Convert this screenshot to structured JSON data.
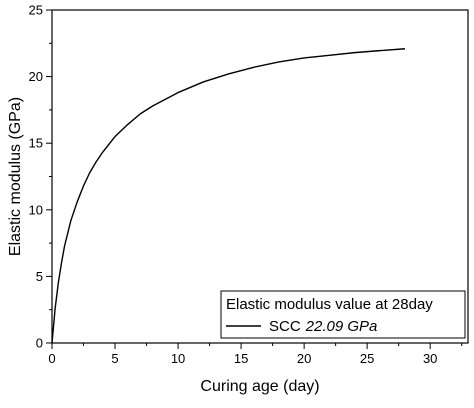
{
  "chart_data": {
    "type": "line",
    "title": "",
    "xlabel": "Curing age (day)",
    "ylabel": "Elastic modulus (GPa)",
    "xlim": [
      0,
      33
    ],
    "ylim": [
      0,
      25
    ],
    "x_ticks": [
      "0",
      "5",
      "10",
      "15",
      "20",
      "25",
      "30"
    ],
    "y_ticks": [
      "0",
      "5",
      "10",
      "15",
      "20",
      "25"
    ],
    "grid": false,
    "legend_position": "bottom-right",
    "legend": {
      "title": "Elastic modulus value at 28day",
      "series_label": "SCC",
      "value_label": "22.09 GPa"
    },
    "series": [
      {
        "name": "SCC 22.09 GPa",
        "color": "#000000",
        "x": [
          0,
          0.25,
          0.5,
          0.75,
          1,
          1.5,
          2,
          2.5,
          3,
          3.5,
          4,
          5,
          6,
          7,
          8,
          9,
          10,
          12,
          14,
          16,
          18,
          20,
          22,
          24,
          26,
          28
        ],
        "y": [
          0,
          2.6,
          4.5,
          6.0,
          7.3,
          9.2,
          10.6,
          11.8,
          12.8,
          13.6,
          14.3,
          15.5,
          16.4,
          17.2,
          17.8,
          18.3,
          18.8,
          19.6,
          20.2,
          20.7,
          21.1,
          21.4,
          21.6,
          21.8,
          21.95,
          22.09
        ]
      }
    ]
  }
}
